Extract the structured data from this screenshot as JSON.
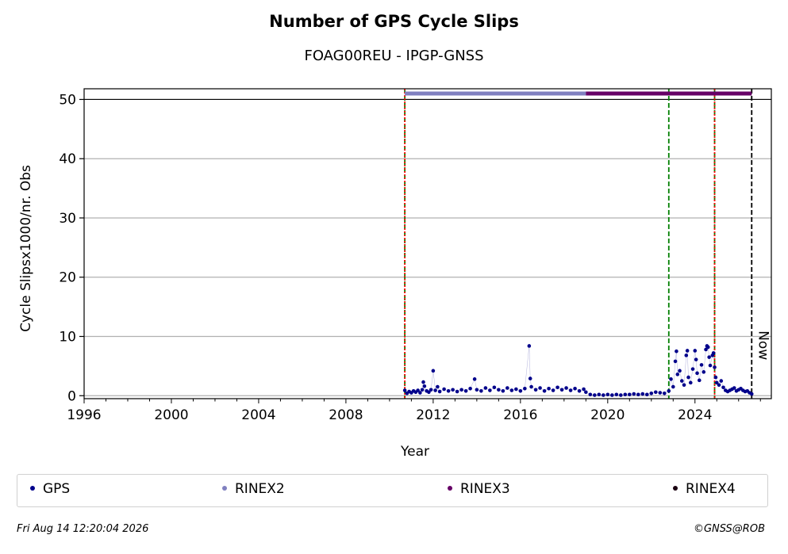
{
  "chart_data": {
    "type": "scatter",
    "title": "Number of GPS Cycle Slips",
    "subtitle": "FOAG00REU - IPGP-GNSS",
    "xlabel": "Year",
    "ylabel": "Cycle Slipsx1000/nr. Obs",
    "xlim": [
      1996,
      2027.5
    ],
    "ylim": [
      -0.5,
      51.8
    ],
    "x_ticks": [
      1996,
      2000,
      2004,
      2008,
      2012,
      2016,
      2020,
      2024
    ],
    "y_ticks": [
      0,
      10,
      20,
      30,
      40,
      50
    ],
    "grid": "horizontal",
    "segments": [
      {
        "name": "RINEX2",
        "start": 2010.7,
        "end": 2019.0,
        "y": 51,
        "color": "#8080c0"
      },
      {
        "name": "RINEX3",
        "start": 2019.0,
        "end": 2026.6,
        "y": 51,
        "color": "#660066"
      }
    ],
    "vlines": [
      {
        "x": 2010.7,
        "color": "#008000",
        "style": "dashed"
      },
      {
        "x": 2010.7,
        "color": "#ff0000",
        "style": "dotted"
      },
      {
        "x": 2022.8,
        "color": "#008000",
        "style": "dashed"
      },
      {
        "x": 2024.9,
        "color": "#008000",
        "style": "dashed"
      },
      {
        "x": 2024.9,
        "color": "#ff0000",
        "style": "dotted"
      },
      {
        "x": 2026.6,
        "color": "#000000",
        "style": "dashed"
      }
    ],
    "now_label": "Now",
    "series": [
      {
        "name": "GPS",
        "color": "#00008b",
        "points": [
          [
            2010.7,
            0.9
          ],
          [
            2010.8,
            0.4
          ],
          [
            2010.9,
            0.7
          ],
          [
            2011.0,
            0.5
          ],
          [
            2011.1,
            0.8
          ],
          [
            2011.2,
            0.6
          ],
          [
            2011.3,
            0.9
          ],
          [
            2011.4,
            0.5
          ],
          [
            2011.5,
            1.0
          ],
          [
            2011.55,
            2.3
          ],
          [
            2011.6,
            1.6
          ],
          [
            2011.7,
            0.8
          ],
          [
            2011.8,
            0.6
          ],
          [
            2011.9,
            1.0
          ],
          [
            2012.0,
            4.2
          ],
          [
            2012.1,
            0.9
          ],
          [
            2012.2,
            1.5
          ],
          [
            2012.3,
            0.7
          ],
          [
            2012.5,
            1.1
          ],
          [
            2012.7,
            0.8
          ],
          [
            2012.9,
            1.0
          ],
          [
            2013.1,
            0.7
          ],
          [
            2013.3,
            1.0
          ],
          [
            2013.5,
            0.8
          ],
          [
            2013.7,
            1.2
          ],
          [
            2013.9,
            2.8
          ],
          [
            2014.0,
            1.0
          ],
          [
            2014.2,
            0.8
          ],
          [
            2014.4,
            1.3
          ],
          [
            2014.6,
            0.9
          ],
          [
            2014.8,
            1.4
          ],
          [
            2015.0,
            1.0
          ],
          [
            2015.2,
            0.8
          ],
          [
            2015.4,
            1.3
          ],
          [
            2015.6,
            0.9
          ],
          [
            2015.8,
            1.1
          ],
          [
            2016.0,
            0.8
          ],
          [
            2016.2,
            1.2
          ],
          [
            2016.4,
            8.4
          ],
          [
            2016.45,
            2.9
          ],
          [
            2016.5,
            1.5
          ],
          [
            2016.7,
            1.0
          ],
          [
            2016.9,
            1.3
          ],
          [
            2017.1,
            0.8
          ],
          [
            2017.3,
            1.2
          ],
          [
            2017.5,
            0.9
          ],
          [
            2017.7,
            1.4
          ],
          [
            2017.9,
            1.0
          ],
          [
            2018.1,
            1.3
          ],
          [
            2018.3,
            0.9
          ],
          [
            2018.5,
            1.2
          ],
          [
            2018.7,
            0.8
          ],
          [
            2018.9,
            1.1
          ],
          [
            2019.0,
            0.6
          ],
          [
            2019.2,
            0.2
          ],
          [
            2019.4,
            0.1
          ],
          [
            2019.6,
            0.2
          ],
          [
            2019.8,
            0.1
          ],
          [
            2020.0,
            0.2
          ],
          [
            2020.2,
            0.1
          ],
          [
            2020.4,
            0.2
          ],
          [
            2020.6,
            0.1
          ],
          [
            2020.8,
            0.2
          ],
          [
            2021.0,
            0.2
          ],
          [
            2021.2,
            0.3
          ],
          [
            2021.4,
            0.2
          ],
          [
            2021.6,
            0.3
          ],
          [
            2021.8,
            0.2
          ],
          [
            2022.0,
            0.4
          ],
          [
            2022.2,
            0.6
          ],
          [
            2022.4,
            0.5
          ],
          [
            2022.6,
            0.4
          ],
          [
            2022.8,
            0.8
          ],
          [
            2022.9,
            2.8
          ],
          [
            2023.0,
            1.5
          ],
          [
            2023.1,
            5.8
          ],
          [
            2023.15,
            7.5
          ],
          [
            2023.2,
            3.6
          ],
          [
            2023.3,
            4.2
          ],
          [
            2023.4,
            2.5
          ],
          [
            2023.5,
            1.8
          ],
          [
            2023.6,
            6.8
          ],
          [
            2023.65,
            7.6
          ],
          [
            2023.7,
            3.1
          ],
          [
            2023.8,
            2.2
          ],
          [
            2023.9,
            4.5
          ],
          [
            2024.0,
            7.6
          ],
          [
            2024.05,
            6.1
          ],
          [
            2024.1,
            3.8
          ],
          [
            2024.2,
            2.6
          ],
          [
            2024.3,
            5.2
          ],
          [
            2024.4,
            4.0
          ],
          [
            2024.5,
            7.8
          ],
          [
            2024.55,
            8.4
          ],
          [
            2024.6,
            8.2
          ],
          [
            2024.65,
            6.5
          ],
          [
            2024.7,
            5.1
          ],
          [
            2024.8,
            6.8
          ],
          [
            2024.85,
            7.2
          ],
          [
            2024.9,
            4.8
          ],
          [
            2024.95,
            3.1
          ],
          [
            2025.0,
            2.2
          ],
          [
            2025.1,
            1.8
          ],
          [
            2025.2,
            2.5
          ],
          [
            2025.3,
            1.4
          ],
          [
            2025.4,
            0.9
          ],
          [
            2025.5,
            0.7
          ],
          [
            2025.6,
            0.9
          ],
          [
            2025.7,
            1.1
          ],
          [
            2025.8,
            1.3
          ],
          [
            2025.9,
            0.8
          ],
          [
            2026.0,
            1.0
          ],
          [
            2026.1,
            1.2
          ],
          [
            2026.2,
            0.9
          ],
          [
            2026.3,
            0.7
          ],
          [
            2026.4,
            0.8
          ],
          [
            2026.5,
            0.5
          ],
          [
            2026.6,
            0.3
          ]
        ]
      }
    ],
    "legend": [
      {
        "label": "GPS",
        "color": "#00008b"
      },
      {
        "label": "RINEX2",
        "color": "#8080c0"
      },
      {
        "label": "RINEX3",
        "color": "#660066"
      },
      {
        "label": "RINEX4",
        "color": "#1a0010"
      }
    ],
    "legend_position": "bottom"
  },
  "footer": {
    "timestamp": "Fri Aug 14 12:20:04 2026",
    "credit": "©GNSS@ROB"
  }
}
